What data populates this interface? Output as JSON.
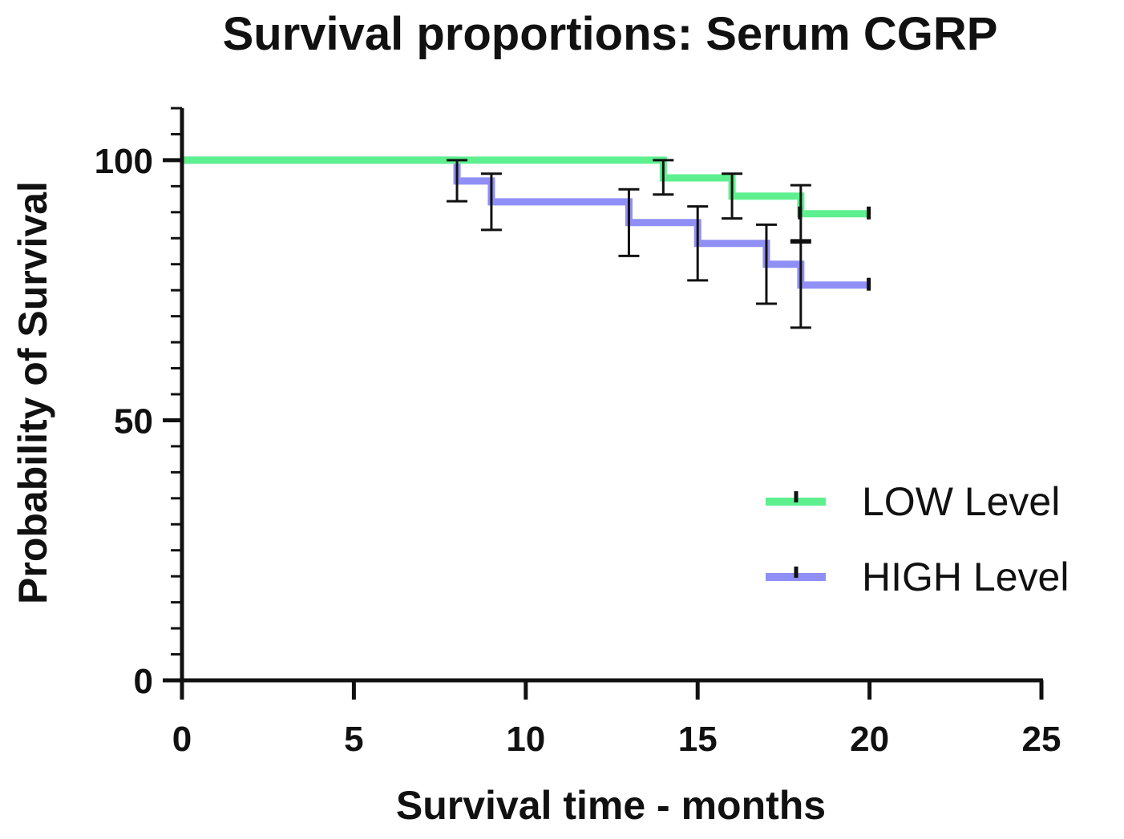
{
  "chart_data": {
    "type": "line",
    "subtype": "kaplan-meier step plot",
    "title": "Survival proportions: Serum CGRP",
    "xlabel": "Survival time - months",
    "ylabel": "Probability of Survival",
    "xlim": [
      0,
      25
    ],
    "ylim": [
      0,
      110
    ],
    "xticks": [
      0,
      5,
      10,
      15,
      20,
      25
    ],
    "yticks": [
      0,
      50,
      100
    ],
    "y_minor_step": 5,
    "legend_position": "right",
    "series": [
      {
        "name": "LOW Level",
        "color": "#5ef08f",
        "steps": [
          {
            "t": 0,
            "s": 100
          },
          {
            "t": 14,
            "s": 96.6
          },
          {
            "t": 16,
            "s": 93.1
          },
          {
            "t": 18,
            "s": 89.7
          }
        ],
        "end_time": 20,
        "error_bars": [
          {
            "t": 14,
            "lower": 93.4,
            "upper": 100
          },
          {
            "t": 16,
            "lower": 88.8,
            "upper": 97.4
          },
          {
            "t": 18,
            "lower": 84.6,
            "upper": 95.2
          }
        ],
        "censored": [
          18,
          20
        ]
      },
      {
        "name": "HIGH Level",
        "color": "#8f8ff5",
        "steps": [
          {
            "t": 0,
            "s": 100
          },
          {
            "t": 8,
            "s": 96
          },
          {
            "t": 9,
            "s": 92
          },
          {
            "t": 13,
            "s": 88
          },
          {
            "t": 15,
            "s": 84
          },
          {
            "t": 17,
            "s": 80
          },
          {
            "t": 18,
            "s": 76
          }
        ],
        "end_time": 20,
        "error_bars": [
          {
            "t": 8,
            "lower": 92.1,
            "upper": 100
          },
          {
            "t": 9,
            "lower": 86.6,
            "upper": 97.4
          },
          {
            "t": 13,
            "lower": 81.6,
            "upper": 94.4
          },
          {
            "t": 15,
            "lower": 76.9,
            "upper": 91.1
          },
          {
            "t": 17,
            "lower": 72.4,
            "upper": 87.6
          },
          {
            "t": 18,
            "lower": 67.8,
            "upper": 84.2
          }
        ],
        "censored": [
          20
        ]
      }
    ]
  }
}
